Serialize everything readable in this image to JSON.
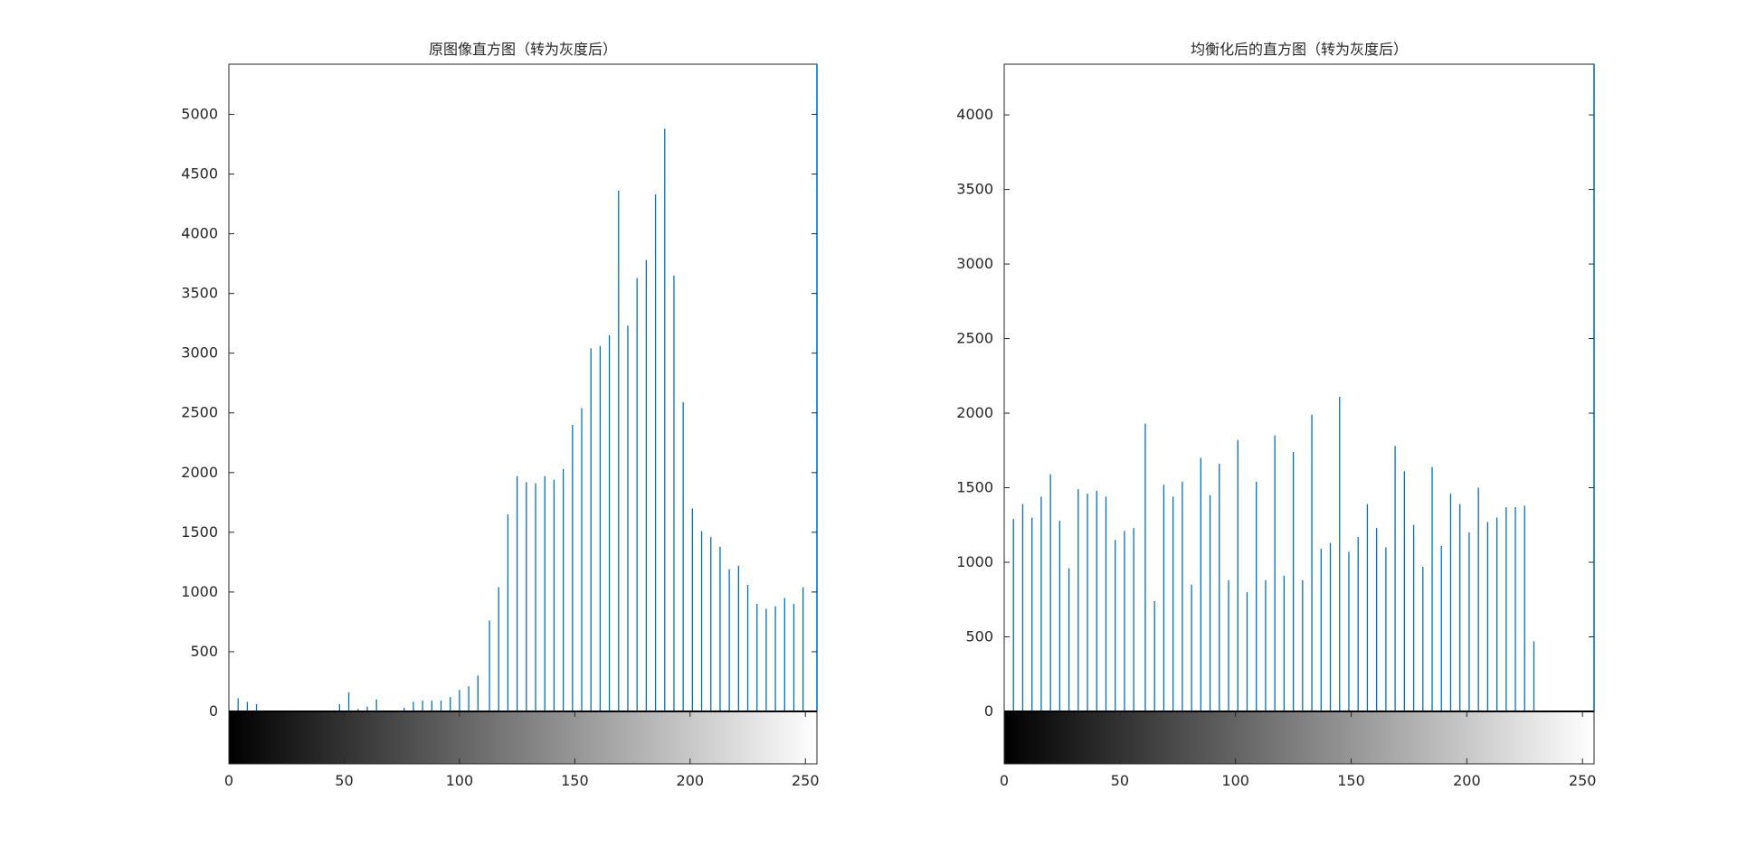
{
  "chart_data": [
    {
      "type": "bar",
      "title": "原图像直方图（转为灰度后）",
      "xlabel": "",
      "ylabel": "",
      "xlim": [
        0,
        255
      ],
      "ylim": [
        0,
        5420
      ],
      "xticks": [
        "0",
        "50",
        "100",
        "150",
        "200",
        "250"
      ],
      "yticks": [
        "0",
        "500",
        "1000",
        "1500",
        "2000",
        "2500",
        "3000",
        "3500",
        "4000",
        "4500",
        "5000"
      ],
      "grid": false,
      "legend": "none",
      "colorbar": "grayscale gradient 0–255 below x-axis",
      "bar_color": "#0072BD",
      "bins": [
        4,
        8,
        12,
        48,
        52,
        56,
        60,
        64,
        76,
        80,
        84,
        88,
        92,
        96,
        100,
        104,
        108,
        113,
        117,
        121,
        125,
        129,
        133,
        137,
        141,
        145,
        149,
        153,
        157,
        161,
        165,
        169,
        173,
        177,
        181,
        185,
        189,
        193,
        197,
        201,
        205,
        209,
        213,
        217,
        221,
        225,
        229,
        233,
        237,
        241,
        245,
        249
      ],
      "values": [
        110,
        80,
        60,
        60,
        160,
        20,
        40,
        100,
        30,
        80,
        90,
        90,
        90,
        120,
        180,
        210,
        300,
        760,
        1040,
        1650,
        1970,
        1920,
        1910,
        1970,
        1940,
        2030,
        2400,
        2540,
        3040,
        3060,
        3150,
        4360,
        3230,
        3630,
        3780,
        4330,
        4880,
        3650,
        2590,
        1700,
        1510,
        1460,
        1380,
        1190,
        1220,
        1060,
        900,
        860,
        880,
        950,
        900,
        1040
      ]
    },
    {
      "type": "bar",
      "title": "均衡化后的直方图（转为灰度后）",
      "xlabel": "",
      "ylabel": "",
      "xlim": [
        0,
        255
      ],
      "ylim": [
        0,
        4340
      ],
      "xticks": [
        "0",
        "50",
        "100",
        "150",
        "200",
        "250"
      ],
      "yticks": [
        "0",
        "500",
        "1000",
        "1500",
        "2000",
        "2500",
        "3000",
        "3500",
        "4000"
      ],
      "grid": false,
      "legend": "none",
      "colorbar": "grayscale gradient 0–255 below x-axis",
      "bar_color": "#0072BD",
      "bins": [
        4,
        8,
        12,
        16,
        20,
        24,
        28,
        32,
        36,
        40,
        44,
        48,
        52,
        56,
        61,
        65,
        69,
        73,
        77,
        81,
        85,
        89,
        93,
        97,
        101,
        105,
        109,
        113,
        117,
        121,
        125,
        129,
        133,
        137,
        141,
        145,
        149,
        153,
        157,
        161,
        165,
        169,
        173,
        177,
        181,
        185,
        189,
        193,
        197,
        201,
        205,
        209,
        213,
        217,
        221,
        225,
        229
      ],
      "values": [
        1290,
        1390,
        1300,
        1440,
        1590,
        1280,
        960,
        1490,
        1460,
        1480,
        1440,
        1150,
        1210,
        1230,
        1930,
        740,
        1520,
        1440,
        1540,
        850,
        1700,
        1450,
        1660,
        880,
        1820,
        800,
        1540,
        880,
        1850,
        910,
        1740,
        880,
        1990,
        1090,
        1130,
        2110,
        1070,
        1170,
        1390,
        1230,
        1100,
        1780,
        1610,
        1250,
        970,
        1640,
        1110,
        1460,
        1390,
        1200,
        1500,
        1270,
        1300,
        1370,
        1370,
        1380,
        470
      ]
    }
  ]
}
